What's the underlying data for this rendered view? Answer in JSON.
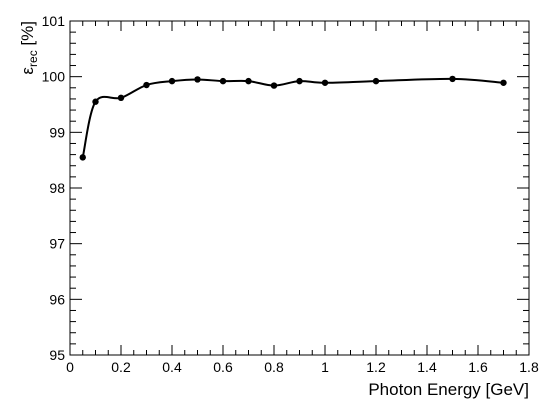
{
  "chart_data": {
    "type": "line",
    "title": "",
    "xlabel": "Photon Energy [GeV]",
    "ylabel_main": "ε",
    "ylabel_sub": "rec",
    "ylabel_unit": " [%]",
    "xlim": [
      0,
      1.8
    ],
    "ylim": [
      95,
      101
    ],
    "grid": false,
    "x_ticks": [
      "0",
      "0.2",
      "0.4",
      "0.6",
      "0.8",
      "1",
      "1.2",
      "1.4",
      "1.6",
      "1.8"
    ],
    "y_ticks": [
      "95",
      "96",
      "97",
      "98",
      "99",
      "100",
      "101"
    ],
    "series": [
      {
        "x": [
          0.05,
          0.1,
          0.2,
          0.3,
          0.4,
          0.5,
          0.6,
          0.7,
          0.8,
          0.9,
          1.0,
          1.2,
          1.5,
          1.7
        ],
        "y": [
          98.55,
          99.55,
          99.62,
          99.85,
          99.92,
          99.95,
          99.92,
          99.92,
          99.84,
          99.92,
          99.89,
          99.92,
          99.96,
          99.89
        ],
        "color": "#000000"
      }
    ]
  }
}
